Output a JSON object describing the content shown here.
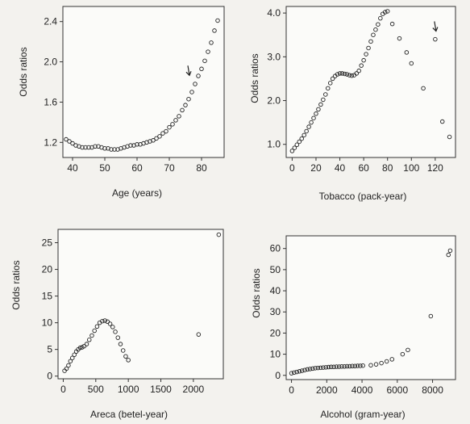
{
  "chart_data": [
    {
      "type": "scatter",
      "xlabel": "Age (years)",
      "ylabel": "Odds ratios",
      "xlim": [
        37,
        87
      ],
      "ylim": [
        1.05,
        2.55
      ],
      "xticks": [
        40,
        50,
        60,
        70,
        80
      ],
      "yticks": [
        1.2,
        1.6,
        2.0,
        2.4
      ],
      "ytick_labels": [
        "1.2",
        "1.6",
        "2.0",
        "2.4"
      ],
      "x": [
        38,
        39,
        40,
        41,
        42,
        43,
        44,
        45,
        46,
        47,
        48,
        49,
        50,
        51,
        52,
        53,
        54,
        55,
        56,
        57,
        58,
        59,
        60,
        61,
        62,
        63,
        64,
        65,
        66,
        67,
        68,
        69,
        70,
        71,
        72,
        73,
        74,
        75,
        76,
        77,
        78,
        79,
        80,
        81,
        82,
        83,
        84,
        85
      ],
      "y": [
        1.23,
        1.21,
        1.19,
        1.17,
        1.16,
        1.15,
        1.15,
        1.15,
        1.15,
        1.16,
        1.16,
        1.15,
        1.14,
        1.14,
        1.13,
        1.13,
        1.13,
        1.14,
        1.15,
        1.16,
        1.17,
        1.17,
        1.18,
        1.18,
        1.19,
        1.2,
        1.21,
        1.22,
        1.24,
        1.26,
        1.29,
        1.31,
        1.35,
        1.38,
        1.42,
        1.46,
        1.52,
        1.57,
        1.63,
        1.7,
        1.78,
        1.86,
        1.93,
        2.01,
        2.1,
        2.19,
        2.31,
        2.41
      ],
      "arrow_at": [
        76,
        1.85
      ]
    },
    {
      "type": "scatter",
      "xlabel": "Tobacco (pack-year)",
      "ylabel": "Odds ratios",
      "xlim": [
        -5,
        137
      ],
      "ylim": [
        0.7,
        4.15
      ],
      "xticks": [
        0,
        20,
        40,
        60,
        80,
        100,
        120
      ],
      "yticks": [
        1.0,
        2.0,
        3.0,
        4.0
      ],
      "ytick_labels": [
        "1.0",
        "2.0",
        "3.0",
        "4.0"
      ],
      "x": [
        0,
        2,
        4,
        6,
        8,
        10,
        12,
        14,
        16,
        18,
        20,
        22,
        24,
        26,
        28,
        30,
        32,
        34,
        36,
        38,
        40,
        42,
        44,
        46,
        48,
        50,
        52,
        54,
        56,
        58,
        60,
        62,
        64,
        66,
        68,
        70,
        72,
        74,
        76,
        78,
        80,
        84,
        90,
        96,
        100,
        110,
        120,
        126,
        132
      ],
      "y": [
        0.85,
        0.92,
        0.99,
        1.06,
        1.13,
        1.21,
        1.3,
        1.4,
        1.5,
        1.6,
        1.7,
        1.8,
        1.91,
        2.02,
        2.14,
        2.28,
        2.4,
        2.5,
        2.56,
        2.6,
        2.62,
        2.62,
        2.61,
        2.6,
        2.58,
        2.57,
        2.58,
        2.62,
        2.68,
        2.8,
        2.92,
        3.06,
        3.2,
        3.35,
        3.5,
        3.62,
        3.74,
        3.88,
        3.98,
        4.02,
        4.04,
        3.75,
        3.42,
        3.1,
        2.85,
        2.28,
        3.4,
        1.52,
        1.17
      ],
      "arrow_at": [
        120,
        3.55
      ]
    },
    {
      "type": "scatter",
      "xlabel": "Areca (betel-year)",
      "ylabel": "Odds ratios",
      "xlim": [
        -80,
        2460
      ],
      "ylim": [
        -0.5,
        27.5
      ],
      "xticks": [
        0,
        500,
        1000,
        1500,
        2000
      ],
      "yticks": [
        0,
        5,
        10,
        15,
        20,
        25
      ],
      "ytick_labels": [
        "0",
        "5",
        "10",
        "15",
        "20",
        "25"
      ],
      "x": [
        20,
        50,
        80,
        110,
        140,
        170,
        200,
        230,
        260,
        290,
        320,
        360,
        400,
        440,
        480,
        520,
        560,
        600,
        640,
        680,
        720,
        760,
        800,
        840,
        880,
        920,
        960,
        1000,
        2080,
        2390
      ],
      "y": [
        1.0,
        1.4,
        2.0,
        2.8,
        3.4,
        4.0,
        4.6,
        5.0,
        5.3,
        5.4,
        5.6,
        6.0,
        6.8,
        7.6,
        8.5,
        9.3,
        10.0,
        10.3,
        10.4,
        10.2,
        9.8,
        9.2,
        8.3,
        7.2,
        6.0,
        4.8,
        3.7,
        3.0,
        7.8,
        26.5
      ]
    },
    {
      "type": "scatter",
      "xlabel": "Alcohol (gram-year)",
      "ylabel": "Odds ratios",
      "xlim": [
        -300,
        9300
      ],
      "ylim": [
        -2,
        66
      ],
      "xticks": [
        0,
        2000,
        4000,
        6000,
        8000
      ],
      "yticks": [
        0,
        10,
        20,
        30,
        40,
        50,
        60
      ],
      "ytick_labels": [
        "0",
        "10",
        "20",
        "30",
        "40",
        "50",
        "60"
      ],
      "x": [
        0,
        150,
        300,
        450,
        600,
        750,
        900,
        1050,
        1200,
        1350,
        1500,
        1650,
        1800,
        1950,
        2100,
        2250,
        2400,
        2550,
        2700,
        2850,
        3000,
        3150,
        3300,
        3450,
        3600,
        3750,
        3900,
        4050,
        4500,
        4800,
        5100,
        5400,
        5700,
        6300,
        6600,
        7900,
        8900,
        9000
      ],
      "y": [
        1.0,
        1.3,
        1.6,
        1.9,
        2.2,
        2.5,
        2.8,
        3.0,
        3.2,
        3.4,
        3.5,
        3.6,
        3.7,
        3.8,
        3.9,
        4.0,
        4.0,
        4.1,
        4.1,
        4.2,
        4.2,
        4.3,
        4.3,
        4.4,
        4.4,
        4.5,
        4.5,
        4.6,
        4.8,
        5.2,
        5.8,
        6.6,
        7.6,
        10.0,
        12.0,
        28.0,
        57.0,
        59.0
      ]
    }
  ]
}
